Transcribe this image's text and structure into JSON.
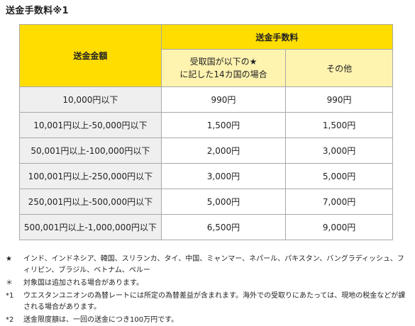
{
  "title": "送金手数料※1",
  "table": {
    "header_amount": "送金金額",
    "header_fee": "送金手数料",
    "subheader_star_line1": "受取国が以下の★",
    "subheader_star_line2": "に記した14カ国の場合",
    "subheader_other": "その他",
    "rows": [
      {
        "amount": "10,000円以下",
        "star_fee": "990円",
        "other_fee": "990円"
      },
      {
        "amount": "10,001円以上-50,000円以下",
        "star_fee": "1,500円",
        "other_fee": "1,500円"
      },
      {
        "amount": "50,001円以上-100,000円以下",
        "star_fee": "2,000円",
        "other_fee": "3,000円"
      },
      {
        "amount": "100,001円以上-250,000円以下",
        "star_fee": "3,000円",
        "other_fee": "5,000円"
      },
      {
        "amount": "250,001円以上-500,000円以下",
        "star_fee": "5,000円",
        "other_fee": "7,000円"
      },
      {
        "amount": "500,001円以上-1,000,000円以下",
        "star_fee": "6,500円",
        "other_fee": "9,000円"
      }
    ]
  },
  "notes": [
    {
      "mark": "★",
      "text": "インド、インドネシア、韓国、スリランカ、タイ、中国、ミャンマー、ネパール、パキスタン、バングラディッシュ、フィリピン、ブラジル、ベトナム、ペルー"
    },
    {
      "mark": "＊",
      "text": "対象国は追加される場合があります。"
    },
    {
      "mark": "*1",
      "text": "ウエスタンユニオンの為替レートには所定の為替差益が含まれます。海外での受取りにあたっては、現地の税金などが課される場合があります。"
    },
    {
      "mark": "*2",
      "text": "送金限度額は、一回の送金につき100万円です。"
    }
  ],
  "colors": {
    "header_yellow": "#ffdd00",
    "subheader_yellow": "#fff3b0",
    "amount_gray": "#efefef",
    "border": "#a8a8a8"
  }
}
